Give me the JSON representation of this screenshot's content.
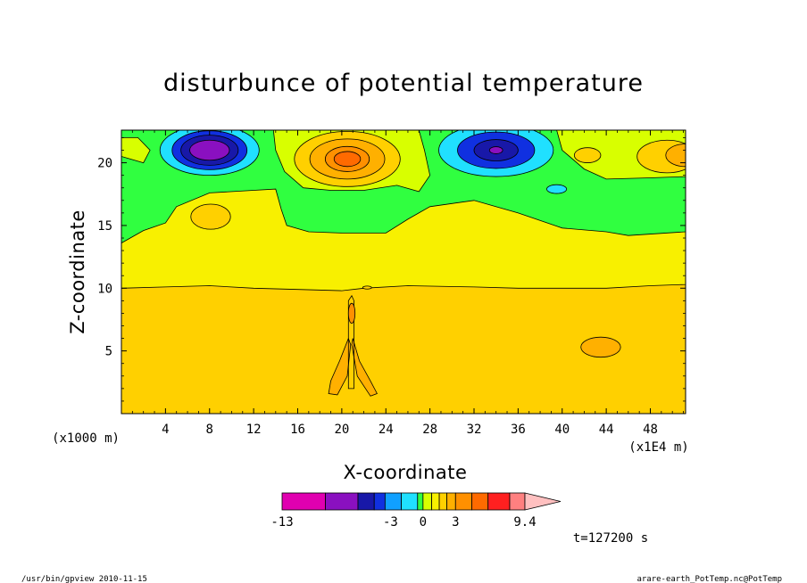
{
  "chart_data": {
    "type": "heatmap",
    "title": "disturbunce of potential temperature",
    "xlabel": "X-coordinate",
    "ylabel": "Z-coordinate",
    "x_unit_label": "(x1E4 m)",
    "y_unit_label": "(x1000 m)",
    "xlim": [
      0,
      51.2
    ],
    "ylim": [
      0,
      22.6
    ],
    "x_ticks": [
      "4",
      "8",
      "12",
      "16",
      "20",
      "24",
      "28",
      "32",
      "36",
      "40",
      "44",
      "48"
    ],
    "y_ticks": [
      "5",
      "10",
      "15",
      "20"
    ],
    "x_tick_values": [
      4,
      8,
      12,
      16,
      20,
      24,
      28,
      32,
      36,
      40,
      44,
      48
    ],
    "y_tick_values": [
      5,
      10,
      15,
      20
    ],
    "time_label": "t=127200 s",
    "colorbar": {
      "ticks": [
        "-13",
        "-3",
        "0",
        "3",
        "9.4"
      ],
      "colors": [
        "#e000b0",
        "#8a10c0",
        "#1818a8",
        "#1030e0",
        "#10a0ff",
        "#20e0ff",
        "#30ff40",
        "#d8ff00",
        "#f8f000",
        "#ffd000",
        "#ffb000",
        "#ff9000",
        "#ff6a00",
        "#ff2020",
        "#ff8080",
        "#ffc0c0"
      ],
      "levels": [
        -13,
        -9,
        -6,
        -4.5,
        -3.5,
        -2,
        -0.5,
        0,
        0.8,
        1.5,
        2.2,
        3,
        4.5,
        6,
        8,
        9.4
      ]
    },
    "fields": {
      "background_mid": "#f8f000",
      "lower_layer": "#ffd000",
      "upper_green": "#30ff40",
      "features": [
        {
          "kind": "cold_cell",
          "x": 8,
          "z": 21,
          "min_value": -13
        },
        {
          "kind": "warm_cell",
          "x": 20.5,
          "z": 20.5,
          "max_value": 6
        },
        {
          "kind": "cold_cell",
          "x": 34,
          "z": 21,
          "min_value": -10
        },
        {
          "kind": "warm_cell",
          "x": 49,
          "z": 20.5,
          "max_value": 3
        },
        {
          "kind": "warm_cell",
          "x": 43.5,
          "z": 5.3,
          "max_value": 3
        },
        {
          "kind": "warm_plume",
          "x": 20.8,
          "z": 4,
          "max_value": 3
        }
      ]
    }
  },
  "footer": {
    "left": "/usr/bin/gpview   2010-11-15",
    "right": "arare-earth_PotTemp.nc@PotTemp"
  }
}
